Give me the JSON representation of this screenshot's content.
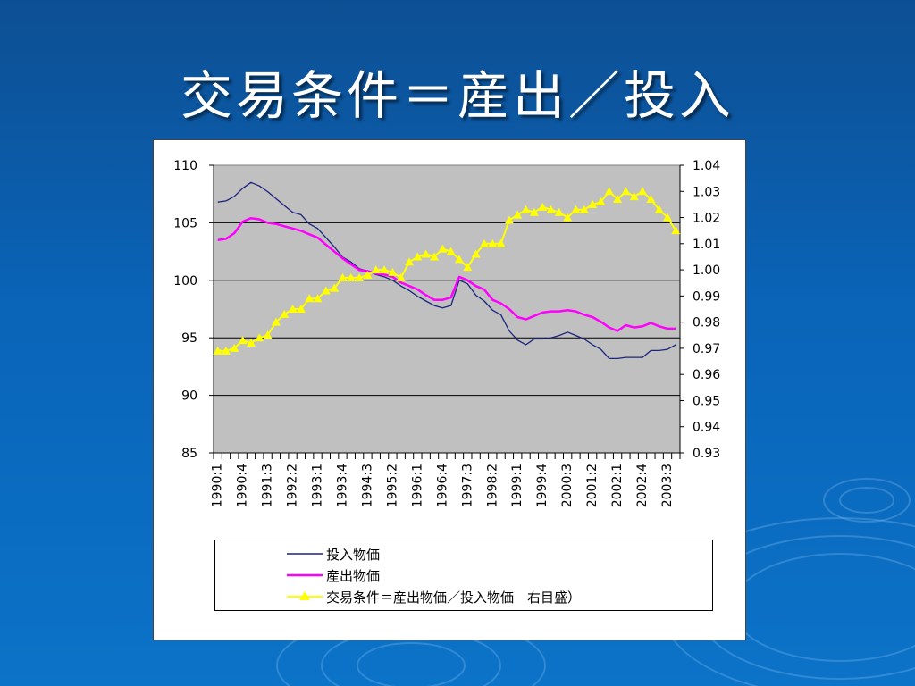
{
  "slide": {
    "title": "交易条件＝産出／投入"
  },
  "colors": {
    "background": "#0a64b8",
    "plot_area": "#c0c0c0",
    "input_price": "#1a237e",
    "output_price": "#ff00ff",
    "terms_of_trade": "#ffff00"
  },
  "chart_data": {
    "type": "line",
    "title": "",
    "xlabel": "",
    "ylabel": "",
    "ylim": [
      85,
      110
    ],
    "y2lim": [
      0.93,
      1.04
    ],
    "yticks": [
      "110",
      "105",
      "100",
      "95",
      "90",
      "85"
    ],
    "y2ticks": [
      "1.04",
      "1.03",
      "1.02",
      "1.01",
      "1.00",
      "0.99",
      "0.98",
      "0.97",
      "0.96",
      "0.95",
      "0.94",
      "0.93"
    ],
    "grid": true,
    "legend_position": "bottom",
    "categories": [
      "1990:1",
      "1990:2",
      "1990:3",
      "1990:4",
      "1991:1",
      "1991:2",
      "1991:3",
      "1991:4",
      "1992:1",
      "1992:2",
      "1992:3",
      "1992:4",
      "1993:1",
      "1993:2",
      "1993:3",
      "1993:4",
      "1994:1",
      "1994:2",
      "1994:3",
      "1994:4",
      "1995:1",
      "1995:2",
      "1995:3",
      "1995:4",
      "1996:1",
      "1996:2",
      "1996:3",
      "1996:4",
      "1997:1",
      "1997:2",
      "1997:3",
      "1997:4",
      "1998:1",
      "1998:2",
      "1998:3",
      "1998:4",
      "1999:1",
      "1999:2",
      "1999:3",
      "1999:4",
      "2000:1",
      "2000:2",
      "2000:3",
      "2000:4",
      "2001:1",
      "2001:2",
      "2001:3",
      "2001:4",
      "2002:1",
      "2002:2",
      "2002:3",
      "2002:4",
      "2003:1",
      "2003:2",
      "2003:3",
      "2003:4"
    ],
    "xtick_labels": [
      "1990:1",
      "1990:4",
      "1991:3",
      "1992:2",
      "1993:1",
      "1993:4",
      "1994:3",
      "1995:2",
      "1996:1",
      "1996:4",
      "1997:3",
      "1998:2",
      "1999:1",
      "1999:4",
      "2000:3",
      "2001:2",
      "2002:1",
      "2002:4",
      "2003:3"
    ],
    "series": [
      {
        "name": "投入物価",
        "axis": "left",
        "values": [
          106.8,
          106.9,
          107.3,
          108.0,
          108.5,
          108.2,
          107.7,
          107.1,
          106.5,
          105.9,
          105.7,
          104.9,
          104.5,
          103.7,
          102.9,
          102.0,
          101.6,
          101.0,
          100.8,
          100.5,
          100.3,
          100.0,
          99.5,
          99.1,
          98.6,
          98.2,
          97.8,
          97.6,
          97.8,
          100.0,
          99.7,
          98.7,
          98.2,
          97.4,
          97.0,
          95.6,
          94.8,
          94.4,
          94.9,
          94.9,
          95.0,
          95.2,
          95.5,
          95.2,
          94.9,
          94.4,
          94.0,
          93.2,
          93.2,
          93.3,
          93.3,
          93.3,
          93.9,
          93.9,
          94.0,
          94.4
        ]
      },
      {
        "name": "産出物価",
        "axis": "left",
        "values": [
          103.5,
          103.6,
          104.1,
          105.1,
          105.4,
          105.3,
          105.0,
          104.9,
          104.7,
          104.5,
          104.3,
          104.0,
          103.7,
          103.1,
          102.5,
          101.9,
          101.4,
          100.9,
          100.8,
          100.6,
          100.5,
          100.3,
          99.8,
          99.5,
          99.2,
          98.7,
          98.3,
          98.3,
          98.5,
          100.3,
          100.0,
          99.5,
          99.2,
          98.3,
          98.0,
          97.5,
          96.8,
          96.6,
          96.9,
          97.2,
          97.3,
          97.3,
          97.4,
          97.3,
          97.0,
          96.8,
          96.4,
          95.9,
          95.6,
          96.1,
          95.9,
          96.0,
          96.3,
          96.0,
          95.8,
          95.8
        ]
      },
      {
        "name": "交易条件＝産出物価／投入物価　右目盛）",
        "axis": "right",
        "values": [
          0.969,
          0.969,
          0.97,
          0.973,
          0.972,
          0.974,
          0.975,
          0.98,
          0.983,
          0.985,
          0.985,
          0.989,
          0.989,
          0.992,
          0.993,
          0.997,
          0.997,
          0.997,
          0.998,
          1.0,
          1.0,
          0.999,
          0.997,
          1.003,
          1.005,
          1.006,
          1.005,
          1.008,
          1.007,
          1.004,
          1.001,
          1.006,
          1.01,
          1.01,
          1.01,
          1.019,
          1.021,
          1.023,
          1.022,
          1.024,
          1.023,
          1.022,
          1.02,
          1.023,
          1.023,
          1.025,
          1.026,
          1.03,
          1.027,
          1.03,
          1.028,
          1.03,
          1.027,
          1.023,
          1.02,
          1.015
        ]
      }
    ]
  }
}
